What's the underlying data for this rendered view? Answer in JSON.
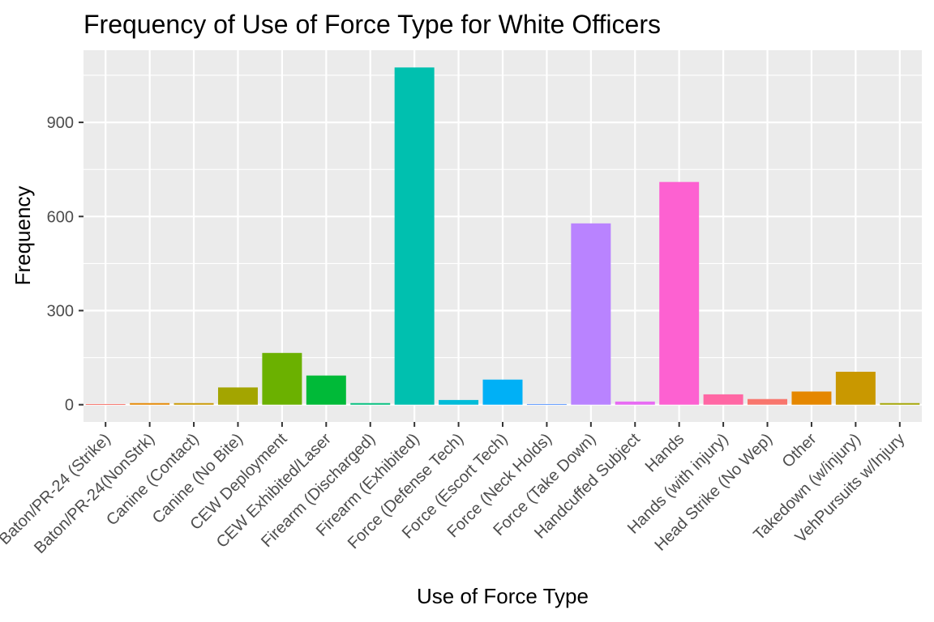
{
  "chart_data": {
    "type": "bar",
    "title": "Frequency of Use of Force Type for White Officers",
    "xlabel": "Use of Force Type",
    "ylabel": "Frequency",
    "categories": [
      "Baton/PR-24 (Strike)",
      "Baton/PR-24(NonStrk)",
      "Canine (Contact)",
      "Canine (No Bite)",
      "CEW Deployment",
      "CEW Exhibited/Laser",
      "Firearm (Discharged)",
      "Firearm (Exhibited)",
      "Force (Defense Tech)",
      "Force (Escort Tech)",
      "Force (Neck Holds)",
      "Force (Take Down)",
      "Handcuffed Subject",
      "Hands",
      "Hands (with injury)",
      "Head Strike (No Wep)",
      "Other",
      "Takedown (w/injury)",
      "VehPursuits w/Injury"
    ],
    "values": [
      2,
      5,
      5,
      55,
      165,
      93,
      5,
      1075,
      15,
      80,
      2,
      578,
      10,
      710,
      33,
      18,
      42,
      105,
      5
    ],
    "colors": [
      "#F8766D",
      "#E58700",
      "#C99800",
      "#A3A500",
      "#6BB100",
      "#00BA38",
      "#00BF7D",
      "#00C0AF",
      "#00BCD8",
      "#00B0F6",
      "#619CFF",
      "#B983FF",
      "#E76BF3",
      "#FD61D1",
      "#FF67A4",
      "#F8766D",
      "#E58700",
      "#C99800",
      "#A3A500"
    ],
    "yticks": [
      0,
      300,
      600,
      900
    ],
    "ylim": [
      -55,
      1130
    ],
    "grid": true,
    "legend": "none"
  }
}
